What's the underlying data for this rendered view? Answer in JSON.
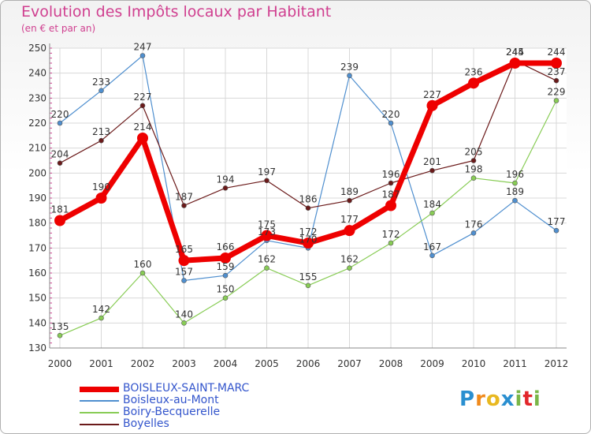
{
  "header": {
    "title": "Evolution des Impôts locaux par Habitant",
    "subtitle": "(en € et par an)"
  },
  "logo": {
    "text": "Proxiti",
    "letters": [
      "P",
      "r",
      "o",
      "x",
      "i",
      "t",
      "i"
    ],
    "colors": [
      "#2a8fd0",
      "#f08a1c",
      "#e8b820",
      "#2a8fd0",
      "#7ab648",
      "#e2262a",
      "#7ab648"
    ]
  },
  "chart_data": {
    "type": "line",
    "title": "Evolution des Impôts locaux par Habitant",
    "subtitle": "(en € et par an)",
    "xlabel": "",
    "ylabel": "",
    "x": [
      "2000",
      "2001",
      "2002",
      "2003",
      "2004",
      "2005",
      "2006",
      "2007",
      "2008",
      "2009",
      "2010",
      "2011",
      "2012"
    ],
    "ylim": [
      130,
      250
    ],
    "yticks": [
      130,
      140,
      150,
      160,
      170,
      180,
      190,
      200,
      210,
      220,
      230,
      240,
      250
    ],
    "grid": true,
    "series": [
      {
        "name": "Boisleux-au-Mont",
        "color": "#4f8fcf",
        "width": 1.2,
        "marker": 3,
        "values": [
          220,
          233,
          247,
          157,
          159,
          173,
          170,
          239,
          220,
          167,
          176,
          189,
          177
        ],
        "labels": [
          "220",
          "233",
          "247",
          "157",
          "159",
          "173",
          "170",
          "239",
          "220",
          "167",
          "176",
          "189",
          "177"
        ]
      },
      {
        "name": "Boiry-Becquerelle",
        "color": "#88cc55",
        "width": 1.2,
        "marker": 3,
        "values": [
          135,
          142,
          160,
          140,
          150,
          162,
          155,
          162,
          172,
          184,
          198,
          196,
          229
        ],
        "labels": [
          "135",
          "142",
          "160",
          "140",
          "150",
          "162",
          "155",
          "162",
          "172",
          "184",
          "198",
          "196",
          "229"
        ]
      },
      {
        "name": "Boyelles",
        "color": "#6b1a1a",
        "width": 1.2,
        "marker": 3,
        "values": [
          204,
          213,
          227,
          187,
          194,
          197,
          186,
          189,
          196,
          201,
          205,
          245,
          237
        ],
        "labels": [
          "204",
          "213",
          "227",
          "187",
          "194",
          "197",
          "186",
          "189",
          "196",
          "201",
          "205",
          "245",
          "237"
        ]
      },
      {
        "name": "BOISLEUX-SAINT-MARC",
        "color": "#ee0000",
        "width": 7,
        "marker": 7,
        "values": [
          181,
          190,
          214,
          165,
          166,
          175,
          172,
          177,
          187,
          227,
          236,
          244,
          244
        ],
        "labels": [
          "181",
          "190",
          "214",
          "165",
          "166",
          "175",
          "172",
          "177",
          "187",
          "227",
          "236",
          "244",
          "244"
        ]
      }
    ],
    "legend": {
      "position": "bottom-left",
      "entries": [
        {
          "name": "BOISLEUX-SAINT-MARC",
          "color": "#ee0000"
        },
        {
          "name": "Boisleux-au-Mont",
          "color": "#4f8fcf"
        },
        {
          "name": "Boiry-Becquerelle",
          "color": "#88cc55"
        },
        {
          "name": "Boyelles",
          "color": "#6b1a1a"
        }
      ]
    }
  }
}
